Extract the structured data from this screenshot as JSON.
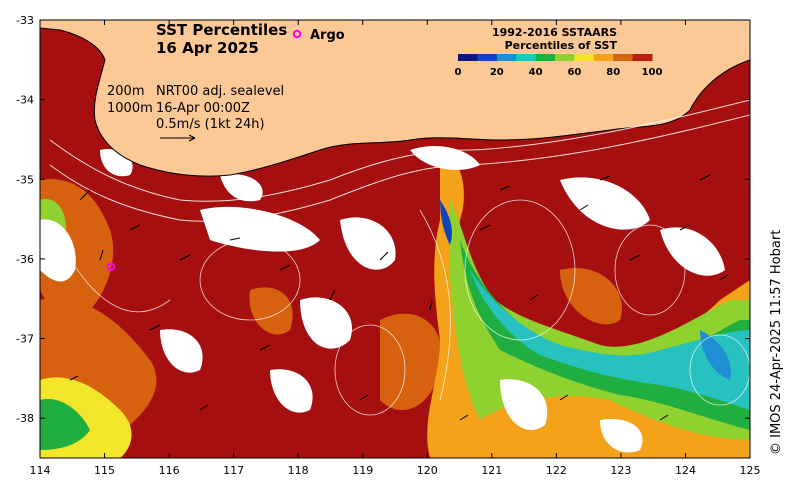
{
  "title": {
    "line1": "SST Percentiles",
    "line2": "16 Apr 2025"
  },
  "argo_label": "Argo",
  "annotations": {
    "depth_200": "200m",
    "depth_1000": "1000m",
    "sealevel": "NRT00 adj. sealevel",
    "time": "16-Apr 00:00Z",
    "scale": "0.5m/s (1kt 24h)"
  },
  "colorbar": {
    "title1": "1992-2016 SSTAARS",
    "title2": "Percentiles of SST",
    "ticks": [
      "0",
      "20",
      "40",
      "60",
      "80",
      "100"
    ],
    "colors": [
      "#0a1a7a",
      "#1144bb",
      "#1f8fd4",
      "#27c1c0",
      "#1fae3f",
      "#8fd12f",
      "#f2e52a",
      "#f3a21a",
      "#d76410",
      "#b81f0e"
    ]
  },
  "axes": {
    "x_ticks": [
      "114",
      "115",
      "116",
      "117",
      "118",
      "119",
      "120",
      "121",
      "122",
      "123",
      "124",
      "125"
    ],
    "y_ticks": [
      "-33",
      "-34",
      "-35",
      "-36",
      "-37",
      "-38"
    ]
  },
  "credit": "© IMOS 24-Apr-2025 11:57 Hobart",
  "colors": {
    "land": "#fcc896",
    "hot": "#a50f0f",
    "warm": "#d6620f"
  },
  "chart_data": {
    "type": "heatmap",
    "xlim": [
      114,
      125
    ],
    "ylim": [
      -38.5,
      -33
    ],
    "x_unit": "longitude",
    "y_unit": "latitude",
    "argo_floats": [
      {
        "lon": 118.1,
        "lat": -33.2
      },
      {
        "lon": 115.1,
        "lat": -36.1
      }
    ]
  }
}
